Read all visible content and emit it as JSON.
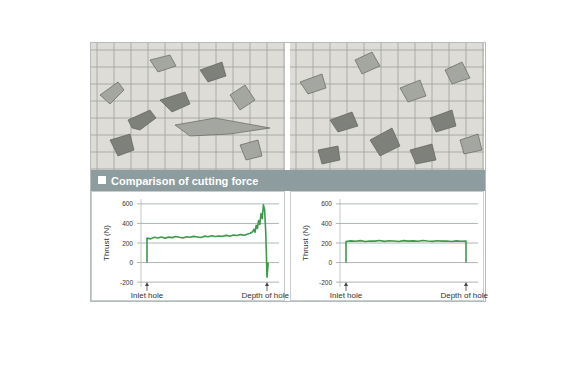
{
  "header": {
    "title": "Comparison of cutting force"
  },
  "chart_data": [
    {
      "type": "line",
      "ylabel": "Thrust (N)",
      "x": [
        0,
        0,
        3,
        6,
        9,
        12,
        15,
        18,
        21,
        24,
        27,
        30,
        33,
        36,
        39,
        42,
        45,
        48,
        51,
        54,
        57,
        60,
        63,
        66,
        69,
        72,
        75,
        78,
        81,
        84,
        86,
        88,
        89,
        90,
        91,
        92,
        93,
        94,
        95,
        96,
        97,
        98,
        99,
        100,
        101
      ],
      "xlim": [
        -5,
        110
      ],
      "xticks": [
        {
          "value": 0,
          "label": "Inlet hole"
        },
        {
          "value": 100,
          "label": "Depth of hole"
        }
      ],
      "ylim": [
        -250,
        650
      ],
      "yticks": [
        -200,
        0,
        200,
        400,
        600
      ],
      "grid": true,
      "series": [
        {
          "color": "#3c9a4c",
          "values": [
            0,
            250,
            242,
            258,
            252,
            262,
            248,
            260,
            255,
            266,
            258,
            252,
            264,
            259,
            268,
            262,
            256,
            270,
            264,
            274,
            266,
            272,
            268,
            278,
            270,
            282,
            276,
            286,
            280,
            292,
            300,
            315,
            340,
            310,
            380,
            350,
            430,
            390,
            500,
            450,
            590,
            540,
            300,
            -150,
            0
          ]
        }
      ]
    },
    {
      "type": "line",
      "ylabel": "Thrust (N)",
      "x": [
        0,
        0,
        4,
        8,
        12,
        16,
        20,
        24,
        28,
        32,
        36,
        40,
        44,
        48,
        52,
        56,
        60,
        64,
        68,
        72,
        76,
        80,
        84,
        88,
        92,
        96,
        100,
        100
      ],
      "xlim": [
        -5,
        110
      ],
      "xticks": [
        {
          "value": 0,
          "label": "Inlet hole"
        },
        {
          "value": 100,
          "label": "Depth of hole"
        }
      ],
      "ylim": [
        -250,
        650
      ],
      "yticks": [
        -200,
        0,
        200,
        400,
        600
      ],
      "grid": true,
      "series": [
        {
          "color": "#3c9a4c",
          "values": [
            0,
            215,
            222,
            218,
            224,
            216,
            221,
            219,
            225,
            217,
            223,
            220,
            216,
            224,
            219,
            222,
            218,
            225,
            220,
            217,
            223,
            219,
            221,
            216,
            222,
            218,
            220,
            0
          ]
        }
      ]
    }
  ]
}
